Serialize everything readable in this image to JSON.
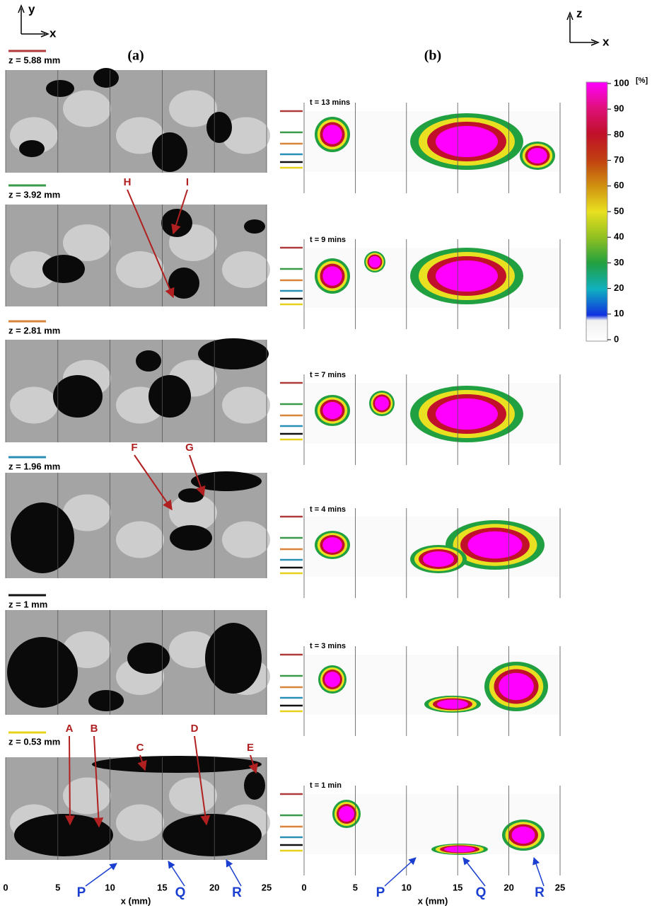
{
  "axes_icons": {
    "left": {
      "vertical": "y",
      "horizontal": "x"
    },
    "right": {
      "vertical": "z",
      "horizontal": "x"
    }
  },
  "panel_a": {
    "label": "(a)",
    "x_ticks": [
      0,
      5,
      10,
      15,
      20,
      25
    ],
    "x_label": "x (mm)",
    "slices": [
      {
        "label": "z = 5.88 mm",
        "color": "#b03a3a",
        "annotations": []
      },
      {
        "label": "z = 3.92 mm",
        "color": "#3a9a4a",
        "annotations": [
          "H",
          "I"
        ]
      },
      {
        "label": "z = 2.81 mm",
        "color": "#d9843a",
        "annotations": []
      },
      {
        "label": "z = 1.96 mm",
        "color": "#2a8fb5",
        "annotations": [
          "F",
          "G"
        ]
      },
      {
        "label": "z = 1 mm",
        "color": "#111111",
        "annotations": []
      },
      {
        "label": "z = 0.53 mm",
        "color": "#e6d21a",
        "annotations": [
          "A",
          "B",
          "C",
          "D",
          "E"
        ]
      }
    ]
  },
  "panel_b": {
    "label": "(b)",
    "x_ticks": [
      0,
      5,
      10,
      15,
      20,
      25
    ],
    "x_label": "x (mm)",
    "frames": [
      "t = 13 mins",
      "t = 9 mins",
      "t = 7 mins",
      "t = 4 mins",
      "t = 3 mins",
      "t = 1 min"
    ]
  },
  "markers": [
    "P",
    "Q",
    "R"
  ],
  "colorbar": {
    "unit": "[%]",
    "ticks": [
      100,
      90,
      80,
      70,
      60,
      50,
      40,
      30,
      20,
      10,
      0
    ]
  }
}
